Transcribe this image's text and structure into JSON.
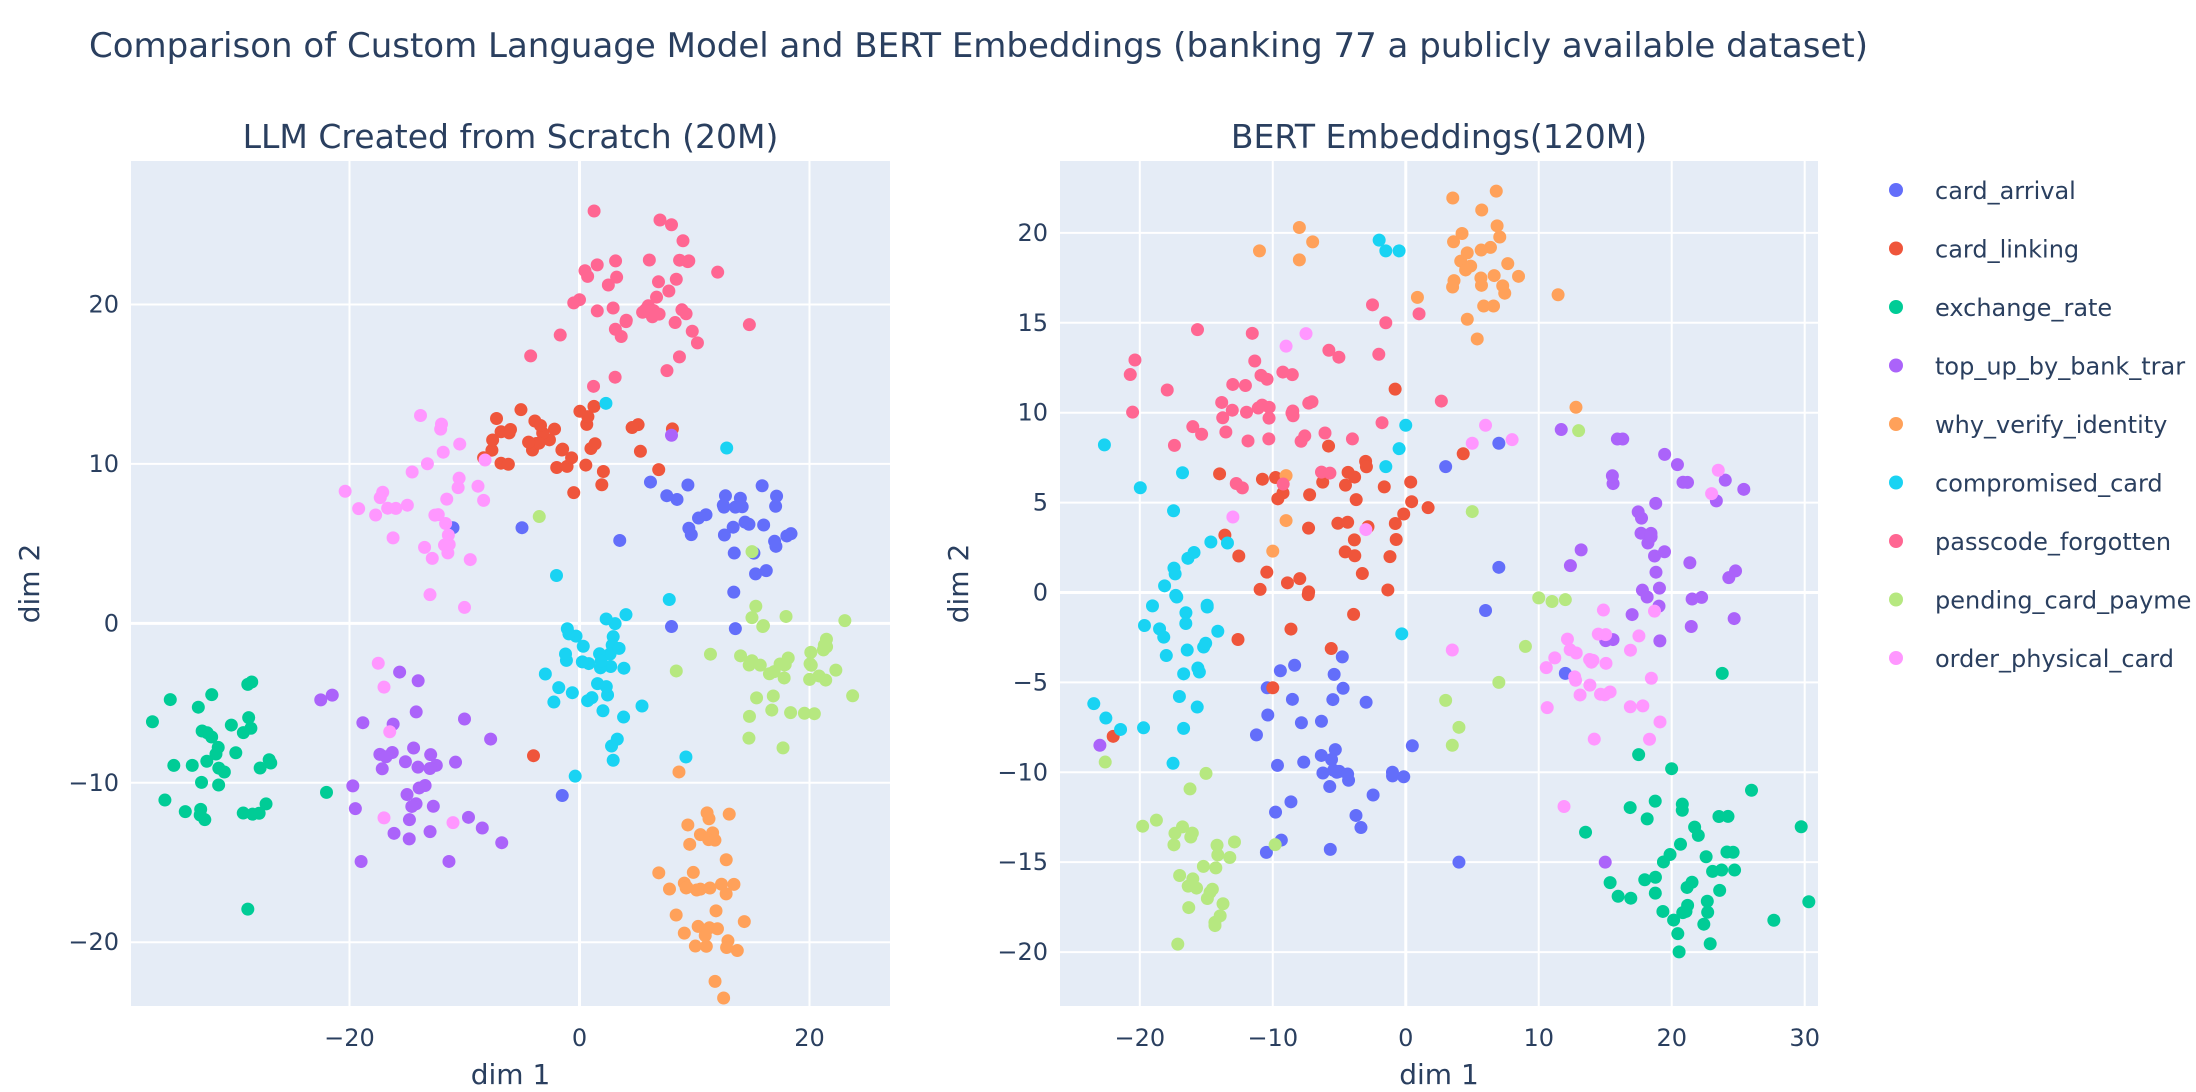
{
  "title": "Comparison of Custom Language Model and BERT Embeddings (banking 77 a publicly available dataset)",
  "legend": {
    "placement": "right",
    "items": [
      {
        "label": "card_arrival",
        "color": "#636efa"
      },
      {
        "label": "card_linking",
        "color": "#EF553B"
      },
      {
        "label": "exchange_rate",
        "color": "#00cc96"
      },
      {
        "label": "top_up_by_bank_trar",
        "color": "#ab63fa"
      },
      {
        "label": "why_verify_identity",
        "color": "#FFA15A"
      },
      {
        "label": "compromised_card",
        "color": "#19d3f3"
      },
      {
        "label": "passcode_forgotten",
        "color": "#FF6692"
      },
      {
        "label": "pending_card_payme",
        "color": "#B6E880"
      },
      {
        "label": "order_physical_card",
        "color": "#FF97FF"
      }
    ]
  },
  "chart_data": [
    {
      "type": "scatter",
      "title": "LLM Created from Scratch (20M)",
      "xlabel": "dim 1",
      "ylabel": "dim 2",
      "xlim": [
        -39,
        27
      ],
      "ylim": [
        -24,
        29
      ],
      "xticks": [
        -20,
        0,
        20
      ],
      "yticks": [
        -20,
        -10,
        0,
        10,
        20
      ],
      "grid": true,
      "clusters": [
        {
          "series": "card_arrival",
          "cx": 12,
          "cy": 5.5,
          "sx": 3.0,
          "sy": 2.0,
          "n": 32,
          "outliers": [
            [
              -11,
              6
            ],
            [
              -5,
              6
            ],
            [
              -1.5,
              -10.8
            ],
            [
              3.5,
              5.2
            ],
            [
              8,
              -0.2
            ]
          ]
        },
        {
          "series": "card_linking",
          "cx": -2,
          "cy": 11.5,
          "sx": 4.5,
          "sy": 1.6,
          "n": 38,
          "outliers": [
            [
              -4,
              -8.3
            ],
            [
              -0.5,
              8.2
            ]
          ]
        },
        {
          "series": "exchange_rate",
          "cx": -31,
          "cy": -8.5,
          "sx": 2.3,
          "sy": 2.6,
          "n": 36,
          "outliers": [
            [
              -22,
              -10.6
            ]
          ]
        },
        {
          "series": "top_up_by_bank_transfer",
          "cx": -15,
          "cy": -10.5,
          "sx": 2.8,
          "sy": 2.4,
          "n": 34,
          "outliers": [
            [
              -22.5,
              -4.8
            ],
            [
              -21.5,
              -4.5
            ],
            [
              8,
              11.8
            ],
            [
              -10,
              -6
            ]
          ]
        },
        {
          "series": "why_verify_identity",
          "cx": 11,
          "cy": -16.5,
          "sx": 2.2,
          "sy": 2.8,
          "n": 38,
          "outliers": []
        },
        {
          "series": "compromised_card",
          "cx": 2,
          "cy": -3,
          "sx": 3.0,
          "sy": 2.4,
          "n": 38,
          "outliers": [
            [
              2.3,
              13.8
            ],
            [
              12.8,
              11
            ],
            [
              -2,
              3
            ]
          ]
        },
        {
          "series": "passcode_forgotten",
          "cx": 6,
          "cy": 20,
          "sx": 3.5,
          "sy": 2.3,
          "n": 40,
          "outliers": [
            [
              7,
              25.3
            ],
            [
              8,
              25
            ],
            [
              9,
              24
            ],
            [
              -0.5,
              20.1
            ],
            [
              0,
              20.3
            ]
          ]
        },
        {
          "series": "pending_card_payment",
          "cx": 17.5,
          "cy": -2,
          "sx": 3.0,
          "sy": 2.3,
          "n": 40,
          "outliers": [
            [
              -3.5,
              6.7
            ],
            [
              15,
              4.5
            ]
          ]
        },
        {
          "series": "order_physical_card",
          "cx": -13,
          "cy": 7,
          "sx": 2.8,
          "sy": 2.2,
          "n": 30,
          "outliers": [
            [
              -12,
              12.5
            ],
            [
              -9.5,
              4
            ],
            [
              -10,
              1
            ],
            [
              -13,
              1.8
            ],
            [
              -17.5,
              -2.5
            ],
            [
              -17,
              -4
            ],
            [
              -16.5,
              -6.8
            ],
            [
              -17,
              -12.2
            ],
            [
              -11,
              -12.5
            ]
          ]
        }
      ]
    },
    {
      "type": "scatter",
      "title": "BERT Embeddings(120M)",
      "xlabel": "dim 1",
      "ylabel": "dim 2",
      "xlim": [
        -26,
        31
      ],
      "ylim": [
        -23,
        24
      ],
      "xticks": [
        -20,
        -10,
        0,
        10,
        20,
        30
      ],
      "yticks": [
        -20,
        -15,
        -10,
        -5,
        0,
        5,
        10,
        15,
        20
      ],
      "grid": true,
      "clusters": [
        {
          "series": "card_arrival",
          "cx": -6,
          "cy": -9.5,
          "sx": 3.0,
          "sy": 2.6,
          "n": 36,
          "outliers": [
            [
              -1,
              -10
            ],
            [
              4,
              -15
            ],
            [
              6,
              -1
            ],
            [
              7,
              1.4
            ],
            [
              7,
              8.3
            ],
            [
              3,
              7
            ],
            [
              12,
              -4.5
            ]
          ]
        },
        {
          "series": "card_linking",
          "cx": -4,
          "cy": 3,
          "sx": 4.5,
          "sy": 3.3,
          "n": 44,
          "outliers": [
            [
              -22,
              -8
            ],
            [
              -10,
              -5.3
            ],
            [
              -14,
              6.6
            ]
          ]
        },
        {
          "series": "exchange_rate",
          "cx": 22,
          "cy": -16,
          "sx": 2.8,
          "sy": 2.2,
          "n": 44,
          "outliers": [
            [
              26,
              -11
            ],
            [
              23.8,
              -4.5
            ]
          ]
        },
        {
          "series": "top_up_by_bank_transfer",
          "cx": 18,
          "cy": 3,
          "sx": 3.0,
          "sy": 3.5,
          "n": 38,
          "outliers": [
            [
              -23,
              -8.5
            ],
            [
              24.8,
              1.2
            ],
            [
              15,
              -15
            ]
          ]
        },
        {
          "series": "why_verify_identity",
          "cx": 6,
          "cy": 18,
          "sx": 3.0,
          "sy": 1.8,
          "n": 28,
          "outliers": [
            [
              -11,
              19
            ],
            [
              -8,
              20.3
            ],
            [
              -7,
              19.5
            ],
            [
              -8,
              18.5
            ],
            [
              12.8,
              10.3
            ],
            [
              -9,
              6.5
            ],
            [
              -9,
              4
            ],
            [
              -10,
              2.3
            ]
          ]
        },
        {
          "series": "compromised_card",
          "cx": -17.5,
          "cy": -1.5,
          "sx": 2.2,
          "sy": 3.0,
          "n": 36,
          "outliers": [
            [
              -2,
              19.6
            ],
            [
              -1.5,
              19
            ],
            [
              -0.5,
              19
            ],
            [
              0,
              9.3
            ],
            [
              -0.5,
              8
            ],
            [
              -1.5,
              7
            ],
            [
              -0.3,
              -2.3
            ],
            [
              -17.5,
              -9.5
            ]
          ]
        },
        {
          "series": "passcode_forgotten",
          "cx": -10,
          "cy": 10,
          "sx": 5.5,
          "sy": 2.6,
          "n": 46,
          "outliers": [
            [
              -2.5,
              16
            ],
            [
              1,
              15.5
            ],
            [
              -1.5,
              15
            ]
          ]
        },
        {
          "series": "pending_card_payment",
          "cx": -16,
          "cy": -14.5,
          "sx": 2.5,
          "sy": 2.4,
          "n": 30,
          "outliers": [
            [
              4,
              -7.5
            ],
            [
              3.5,
              -8.5
            ],
            [
              3,
              -6
            ],
            [
              11,
              -0.5
            ],
            [
              12,
              -0.4
            ],
            [
              10,
              -0.3
            ],
            [
              7,
              -5
            ],
            [
              9,
              -3
            ],
            [
              13,
              9
            ],
            [
              5,
              4.5
            ]
          ]
        },
        {
          "series": "order_physical_card",
          "cx": 15,
          "cy": -5,
          "sx": 2.5,
          "sy": 3.0,
          "n": 30,
          "outliers": [
            [
              6,
              9.3
            ],
            [
              5,
              8.3
            ],
            [
              23.5,
              6.8
            ],
            [
              23,
              5.5
            ],
            [
              -13,
              4.2
            ],
            [
              -9,
              13.7
            ],
            [
              -7.5,
              14.4
            ],
            [
              -3,
              3.5
            ],
            [
              3.5,
              -3.2
            ],
            [
              8,
              8.5
            ]
          ]
        }
      ]
    }
  ]
}
